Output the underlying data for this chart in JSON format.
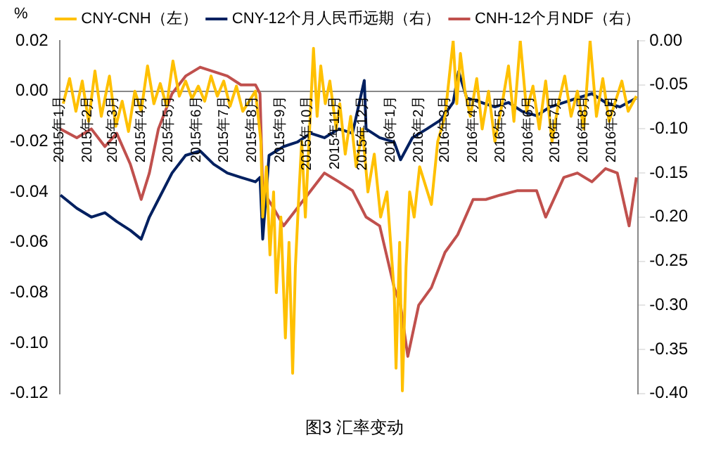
{
  "chart_data": {
    "type": "line",
    "ylabel": "%",
    "legend": "top",
    "grid": false,
    "marker": "none",
    "line_style": "solid",
    "annotations": [
      "图3 汇率变动"
    ],
    "xlim": [
      "2015-01-01",
      "2016-09-30"
    ],
    "xticks": [
      {
        "value": "2015-01-01",
        "label": "2015年1月"
      },
      {
        "value": "2015-02-01",
        "label": "2015年2月"
      },
      {
        "value": "2015-03-01",
        "label": "2015年3月"
      },
      {
        "value": "2015-04-01",
        "label": "2015年4月"
      },
      {
        "value": "2015-05-01",
        "label": "2015年5月"
      },
      {
        "value": "2015-06-01",
        "label": "2015年6月"
      },
      {
        "value": "2015-07-01",
        "label": "2015年7月"
      },
      {
        "value": "2015-08-01",
        "label": "2015年8月"
      },
      {
        "value": "2015-09-01",
        "label": "2015年9月"
      },
      {
        "value": "2015-10-01",
        "label": "2015年10月"
      },
      {
        "value": "2015-11-01",
        "label": "2015年11月"
      },
      {
        "value": "2015-12-01",
        "label": "2015年12月"
      },
      {
        "value": "2016-01-01",
        "label": "2016年1月"
      },
      {
        "value": "2016-02-01",
        "label": "2016年2月"
      },
      {
        "value": "2016-03-01",
        "label": "2016年3月"
      },
      {
        "value": "2016-04-01",
        "label": "2016年4月"
      },
      {
        "value": "2016-05-01",
        "label": "2016年5月"
      },
      {
        "value": "2016-06-01",
        "label": "2016年6月"
      },
      {
        "value": "2016-07-01",
        "label": "2016年7月"
      },
      {
        "value": "2016-08-01",
        "label": "2016年8月"
      },
      {
        "value": "2016-09-01",
        "label": "2016年9月"
      }
    ],
    "ylim": [
      -0.12,
      0.02
    ],
    "yticks": [
      {
        "value": 0.02,
        "label": "0.02"
      },
      {
        "value": 0,
        "label": "0.00"
      },
      {
        "value": -0.02,
        "label": "-0.02"
      },
      {
        "value": -0.04,
        "label": "-0.04"
      },
      {
        "value": -0.06,
        "label": "-0.06"
      },
      {
        "value": -0.08,
        "label": "-0.08"
      },
      {
        "value": -0.1,
        "label": "-0.10"
      },
      {
        "value": -0.12,
        "label": "-0.12"
      }
    ],
    "y2lim": [
      -0.4,
      0
    ],
    "y2ticks": [
      {
        "value": 0,
        "label": "0.00"
      },
      {
        "value": -0.05,
        "label": "-0.05"
      },
      {
        "value": -0.1,
        "label": "-0.10"
      },
      {
        "value": -0.15,
        "label": "-0.15"
      },
      {
        "value": -0.2,
        "label": "-0.20"
      },
      {
        "value": -0.25,
        "label": "-0.25"
      },
      {
        "value": -0.3,
        "label": "-0.30"
      },
      {
        "value": -0.35,
        "label": "-0.35"
      },
      {
        "value": -0.4,
        "label": "-0.40"
      }
    ],
    "series": [
      {
        "name": "CNY-CNH（左）",
        "color": "#ffc000",
        "x": [
          "2015-01-05",
          "2015-01-12",
          "2015-01-19",
          "2015-01-26",
          "2015-02-02",
          "2015-02-09",
          "2015-02-16",
          "2015-02-25",
          "2015-03-04",
          "2015-03-11",
          "2015-03-18",
          "2015-03-25",
          "2015-04-01",
          "2015-04-08",
          "2015-04-15",
          "2015-04-22",
          "2015-04-29",
          "2015-05-06",
          "2015-05-13",
          "2015-05-20",
          "2015-05-27",
          "2015-06-03",
          "2015-06-10",
          "2015-06-17",
          "2015-06-24",
          "2015-07-01",
          "2015-07-08",
          "2015-07-15",
          "2015-07-22",
          "2015-07-29",
          "2015-08-05",
          "2015-08-11",
          "2015-08-13",
          "2015-08-17",
          "2015-08-21",
          "2015-08-25",
          "2015-08-28",
          "2015-09-02",
          "2015-09-07",
          "2015-09-11",
          "2015-09-15",
          "2015-09-18",
          "2015-09-22",
          "2015-09-25",
          "2015-09-29",
          "2015-10-08",
          "2015-10-12",
          "2015-10-16",
          "2015-10-21",
          "2015-10-26",
          "2015-11-02",
          "2015-11-06",
          "2015-11-12",
          "2015-11-18",
          "2015-11-24",
          "2015-12-01",
          "2015-12-07",
          "2015-12-14",
          "2015-12-21",
          "2015-12-28",
          "2016-01-05",
          "2016-01-07",
          "2016-01-11",
          "2016-01-14",
          "2016-01-18",
          "2016-01-22",
          "2016-01-27",
          "2016-02-02",
          "2016-02-15",
          "2016-02-22",
          "2016-03-01",
          "2016-03-07",
          "2016-03-10",
          "2016-03-14",
          "2016-03-18",
          "2016-03-23",
          "2016-03-29",
          "2016-04-05",
          "2016-04-11",
          "2016-04-18",
          "2016-04-25",
          "2016-05-03",
          "2016-05-10",
          "2016-05-16",
          "2016-05-23",
          "2016-05-30",
          "2016-06-06",
          "2016-06-13",
          "2016-06-20",
          "2016-06-27",
          "2016-07-04",
          "2016-07-11",
          "2016-07-18",
          "2016-07-25",
          "2016-08-01",
          "2016-08-08",
          "2016-08-15",
          "2016-08-22",
          "2016-08-29",
          "2016-09-05",
          "2016-09-12",
          "2016-09-19",
          "2016-09-28"
        ],
        "values": [
          -0.005,
          0.005,
          -0.008,
          0.004,
          -0.012,
          0.008,
          -0.01,
          0.006,
          -0.014,
          -0.004,
          -0.016,
          0,
          -0.008,
          0.01,
          -0.005,
          0.003,
          -0.006,
          0.012,
          -0.002,
          0.004,
          -0.003,
          0.002,
          -0.004,
          0.006,
          -0.002,
          0.004,
          -0.006,
          0.002,
          -0.008,
          -0.004,
          0,
          -0.02,
          -0.05,
          -0.03,
          -0.065,
          -0.04,
          -0.08,
          -0.05,
          -0.098,
          -0.06,
          -0.112,
          -0.07,
          -0.04,
          -0.02,
          -0.05,
          0.017,
          -0.01,
          0.01,
          -0.005,
          0.004,
          -0.015,
          -0.005,
          -0.025,
          -0.01,
          -0.03,
          -0.015,
          -0.04,
          -0.025,
          -0.05,
          -0.04,
          -0.08,
          -0.11,
          -0.06,
          -0.119,
          -0.07,
          -0.04,
          -0.05,
          -0.03,
          -0.045,
          -0.02,
          -0.01,
          0.01,
          0.02,
          -0.005,
          0.015,
          0,
          -0.01,
          0.005,
          -0.015,
          0,
          -0.02,
          -0.005,
          0.01,
          -0.012,
          0.02,
          -0.008,
          0.002,
          -0.015,
          0.004,
          -0.02,
          -0.005,
          0.006,
          -0.01,
          0,
          -0.015,
          0.02,
          -0.01,
          0.005,
          -0.012,
          -0.004,
          0.004,
          -0.008,
          -0.002
        ]
      },
      {
        "name": "CNY-12个月人民币远期（右）",
        "color": "#002060",
        "axis": "y2",
        "x": [
          "2015-01-02",
          "2015-01-20",
          "2015-02-05",
          "2015-02-20",
          "2015-03-05",
          "2015-03-20",
          "2015-04-01",
          "2015-04-10",
          "2015-04-20",
          "2015-05-05",
          "2015-05-20",
          "2015-06-05",
          "2015-06-20",
          "2015-07-05",
          "2015-07-20",
          "2015-08-05",
          "2015-08-10",
          "2015-08-13",
          "2015-08-20",
          "2015-09-05",
          "2015-09-20",
          "2015-10-05",
          "2015-10-20",
          "2015-11-05",
          "2015-11-20",
          "2015-12-03",
          "2015-12-05",
          "2015-12-20",
          "2016-01-05",
          "2016-01-12",
          "2016-01-25",
          "2016-02-10",
          "2016-02-25",
          "2016-03-10",
          "2016-03-16",
          "2016-03-25",
          "2016-04-10",
          "2016-04-25",
          "2016-05-10",
          "2016-05-25",
          "2016-06-10",
          "2016-06-25",
          "2016-07-10",
          "2016-07-25",
          "2016-08-10",
          "2016-08-25",
          "2016-09-10",
          "2016-09-28"
        ],
        "values": [
          -0.175,
          -0.19,
          -0.2,
          -0.195,
          -0.205,
          -0.215,
          -0.225,
          -0.2,
          -0.18,
          -0.15,
          -0.13,
          -0.125,
          -0.14,
          -0.15,
          -0.155,
          -0.16,
          -0.155,
          -0.225,
          -0.13,
          -0.12,
          -0.115,
          -0.105,
          -0.11,
          -0.1,
          -0.105,
          -0.045,
          -0.1,
          -0.11,
          -0.115,
          -0.135,
          -0.11,
          -0.1,
          -0.09,
          -0.07,
          -0.035,
          -0.065,
          -0.07,
          -0.075,
          -0.07,
          -0.08,
          -0.085,
          -0.075,
          -0.07,
          -0.065,
          -0.06,
          -0.07,
          -0.075,
          -0.065
        ]
      },
      {
        "name": "CNH-12个月NDF（右）",
        "color": "#c0504d",
        "axis": "y2",
        "x": [
          "2015-01-02",
          "2015-01-20",
          "2015-02-05",
          "2015-02-20",
          "2015-03-05",
          "2015-03-20",
          "2015-04-01",
          "2015-04-10",
          "2015-04-20",
          "2015-05-05",
          "2015-05-20",
          "2015-06-05",
          "2015-06-20",
          "2015-07-05",
          "2015-07-20",
          "2015-08-05",
          "2015-08-10",
          "2015-08-13",
          "2015-08-25",
          "2015-09-05",
          "2015-09-20",
          "2015-10-05",
          "2015-10-20",
          "2015-11-05",
          "2015-11-20",
          "2015-12-05",
          "2015-12-20",
          "2016-01-05",
          "2016-01-12",
          "2016-01-20",
          "2016-02-01",
          "2016-02-15",
          "2016-03-01",
          "2016-03-15",
          "2016-04-01",
          "2016-04-15",
          "2016-05-01",
          "2016-05-20",
          "2016-06-10",
          "2016-06-20",
          "2016-07-10",
          "2016-07-25",
          "2016-08-10",
          "2016-08-25",
          "2016-09-07",
          "2016-09-20",
          "2016-09-28"
        ],
        "values": [
          -0.1,
          -0.11,
          -0.1,
          -0.12,
          -0.105,
          -0.14,
          -0.18,
          -0.15,
          -0.1,
          -0.06,
          -0.04,
          -0.03,
          -0.035,
          -0.04,
          -0.05,
          -0.05,
          -0.06,
          -0.17,
          -0.19,
          -0.21,
          -0.19,
          -0.17,
          -0.15,
          -0.16,
          -0.17,
          -0.2,
          -0.21,
          -0.28,
          -0.3,
          -0.358,
          -0.3,
          -0.28,
          -0.24,
          -0.22,
          -0.18,
          -0.18,
          -0.175,
          -0.17,
          -0.17,
          -0.2,
          -0.155,
          -0.15,
          -0.16,
          -0.145,
          -0.15,
          -0.21,
          -0.155
        ]
      }
    ]
  }
}
